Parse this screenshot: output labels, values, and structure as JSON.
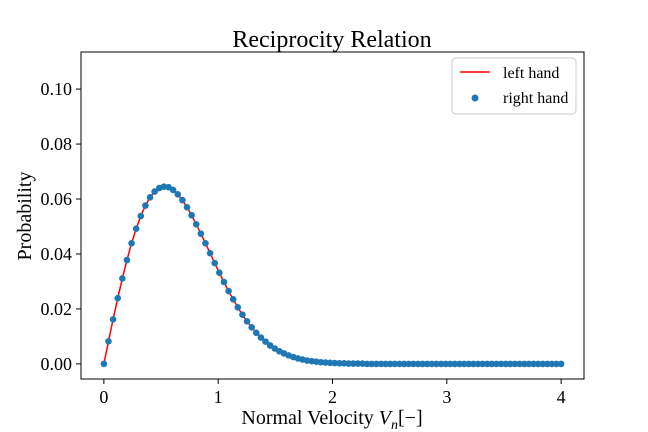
{
  "chart_data": {
    "type": "line",
    "title": "Reciprocity Relation",
    "xlabel": "Normal Velocity",
    "xlabel_symbol": "V",
    "xlabel_subscript": "n",
    "xlabel_unit": "[−]",
    "ylabel": "Probability",
    "xlim": [
      -0.2,
      4.2
    ],
    "ylim": [
      -0.0055,
      0.1135
    ],
    "xticks": [
      0,
      1,
      2,
      3,
      4
    ],
    "xtick_labels": [
      "0",
      "1",
      "2",
      "3",
      "4"
    ],
    "yticks": [
      0.0,
      0.02,
      0.04,
      0.06,
      0.08,
      0.1
    ],
    "ytick_labels": [
      "0.00",
      "0.02",
      "0.04",
      "0.06",
      "0.08",
      "0.10"
    ],
    "grid": false,
    "legend_position": "top-right",
    "series": [
      {
        "name": "left hand",
        "kind": "line",
        "color": "#ff0000",
        "x": [
          0,
          0.0404,
          0.0808,
          0.1212,
          0.1616,
          0.202,
          0.2424,
          0.2828,
          0.3232,
          0.3636,
          0.404,
          0.4444,
          0.4848,
          0.5253,
          0.5657,
          0.6061,
          0.6465,
          0.6869,
          0.7273,
          0.7677,
          0.8081,
          0.8485,
          0.8889,
          0.9293,
          0.9697,
          1.0101,
          1.0505,
          1.0909,
          1.1313,
          1.1717,
          1.2121,
          1.2525,
          1.2929,
          1.3333,
          1.3737,
          1.4141,
          1.4545,
          1.4949,
          1.5354,
          1.5758,
          1.6162,
          1.6566,
          1.697,
          1.7374,
          1.7778,
          1.8182,
          1.8586,
          1.899,
          1.9394,
          1.9798,
          2.0202,
          2.0606,
          2.101,
          2.1414,
          2.1818,
          2.2222,
          2.2626,
          2.303,
          2.3434,
          2.3838,
          2.4242,
          2.4646,
          2.5051,
          2.5455,
          2.5859,
          2.6263,
          2.6667,
          2.7071,
          2.7475,
          2.7879,
          2.8283,
          2.8687,
          2.9091,
          2.9495,
          2.9899,
          3.0303,
          3.0707,
          3.1111,
          3.1515,
          3.1919,
          3.2323,
          3.2727,
          3.3131,
          3.3535,
          3.3939,
          3.4343,
          3.4747,
          3.5152,
          3.5556,
          3.596,
          3.6364,
          3.6768,
          3.7172,
          3.7576,
          3.798,
          3.8384,
          3.8788,
          3.9192,
          3.9596,
          4.0
        ],
        "values": [
          0.0,
          0.0082,
          0.0162,
          0.0239,
          0.0311,
          0.0378,
          0.0439,
          0.0492,
          0.0538,
          0.0576,
          0.0606,
          0.0627,
          0.064,
          0.0645,
          0.0643,
          0.0633,
          0.0617,
          0.0596,
          0.057,
          0.0541,
          0.0508,
          0.0474,
          0.0439,
          0.0403,
          0.0367,
          0.0332,
          0.0298,
          0.0265,
          0.0235,
          0.0206,
          0.0179,
          0.0155,
          0.0133,
          0.0113,
          0.0096,
          0.0081,
          0.0067,
          0.0056,
          0.0046,
          0.0038,
          0.0031,
          0.0025,
          0.002,
          0.0016,
          0.0012,
          0.001,
          0.0008,
          0.0006,
          0.0005,
          0.0004,
          0.0003,
          0.0002,
          0.0002,
          0.0001,
          0.0001,
          0.0001,
          0.0001,
          0.0,
          0.0,
          0.0,
          0.0,
          0.0,
          0.0,
          0.0,
          0.0,
          0.0,
          0.0,
          0.0,
          0.0,
          0.0,
          0.0,
          0.0,
          0.0,
          0.0,
          0.0,
          0.0,
          0.0,
          0.0,
          0.0,
          0.0,
          0.0,
          0.0,
          0.0,
          0.0,
          0.0,
          0.0,
          0.0,
          0.0,
          0.0,
          0.0,
          0.0,
          0.0,
          0.0,
          0.0,
          0.0,
          0.0,
          0.0,
          0.0,
          0.0,
          0.0
        ]
      },
      {
        "name": "right hand",
        "kind": "scatter",
        "color": "#1f77b4",
        "x": [
          0,
          0.0404,
          0.0808,
          0.1212,
          0.1616,
          0.202,
          0.2424,
          0.2828,
          0.3232,
          0.3636,
          0.404,
          0.4444,
          0.4848,
          0.5253,
          0.5657,
          0.6061,
          0.6465,
          0.6869,
          0.7273,
          0.7677,
          0.8081,
          0.8485,
          0.8889,
          0.9293,
          0.9697,
          1.0101,
          1.0505,
          1.0909,
          1.1313,
          1.1717,
          1.2121,
          1.2525,
          1.2929,
          1.3333,
          1.3737,
          1.4141,
          1.4545,
          1.4949,
          1.5354,
          1.5758,
          1.6162,
          1.6566,
          1.697,
          1.7374,
          1.7778,
          1.8182,
          1.8586,
          1.899,
          1.9394,
          1.9798,
          2.0202,
          2.0606,
          2.101,
          2.1414,
          2.1818,
          2.2222,
          2.2626,
          2.303,
          2.3434,
          2.3838,
          2.4242,
          2.4646,
          2.5051,
          2.5455,
          2.5859,
          2.6263,
          2.6667,
          2.7071,
          2.7475,
          2.7879,
          2.8283,
          2.8687,
          2.9091,
          2.9495,
          2.9899,
          3.0303,
          3.0707,
          3.1111,
          3.1515,
          3.1919,
          3.2323,
          3.2727,
          3.3131,
          3.3535,
          3.3939,
          3.4343,
          3.4747,
          3.5152,
          3.5556,
          3.596,
          3.6364,
          3.6768,
          3.7172,
          3.7576,
          3.798,
          3.8384,
          3.8788,
          3.9192,
          3.9596,
          4.0
        ],
        "values": [
          0.0,
          0.0082,
          0.0162,
          0.0239,
          0.0311,
          0.0378,
          0.0439,
          0.0492,
          0.0538,
          0.0576,
          0.0606,
          0.0627,
          0.064,
          0.0645,
          0.0643,
          0.0633,
          0.0617,
          0.0596,
          0.057,
          0.0541,
          0.0508,
          0.0474,
          0.0439,
          0.0403,
          0.0367,
          0.0332,
          0.0298,
          0.0265,
          0.0235,
          0.0206,
          0.0179,
          0.0155,
          0.0133,
          0.0113,
          0.0096,
          0.0081,
          0.0067,
          0.0056,
          0.0046,
          0.0038,
          0.0031,
          0.0025,
          0.002,
          0.0016,
          0.0012,
          0.001,
          0.0008,
          0.0006,
          0.0005,
          0.0004,
          0.0003,
          0.0002,
          0.0002,
          0.0001,
          0.0001,
          0.0001,
          0.0001,
          0.0,
          0.0,
          0.0,
          0.0,
          0.0,
          0.0,
          0.0,
          0.0,
          0.0,
          0.0,
          0.0,
          0.0,
          0.0,
          0.0,
          0.0,
          0.0,
          0.0,
          0.0,
          0.0,
          0.0,
          0.0,
          0.0,
          0.0,
          0.0,
          0.0,
          0.0,
          0.0,
          0.0,
          0.0,
          0.0,
          0.0,
          0.0,
          0.0,
          0.0,
          0.0,
          0.0,
          0.0,
          0.0,
          0.0,
          0.0,
          0.0,
          0.0,
          0.0
        ]
      }
    ]
  }
}
